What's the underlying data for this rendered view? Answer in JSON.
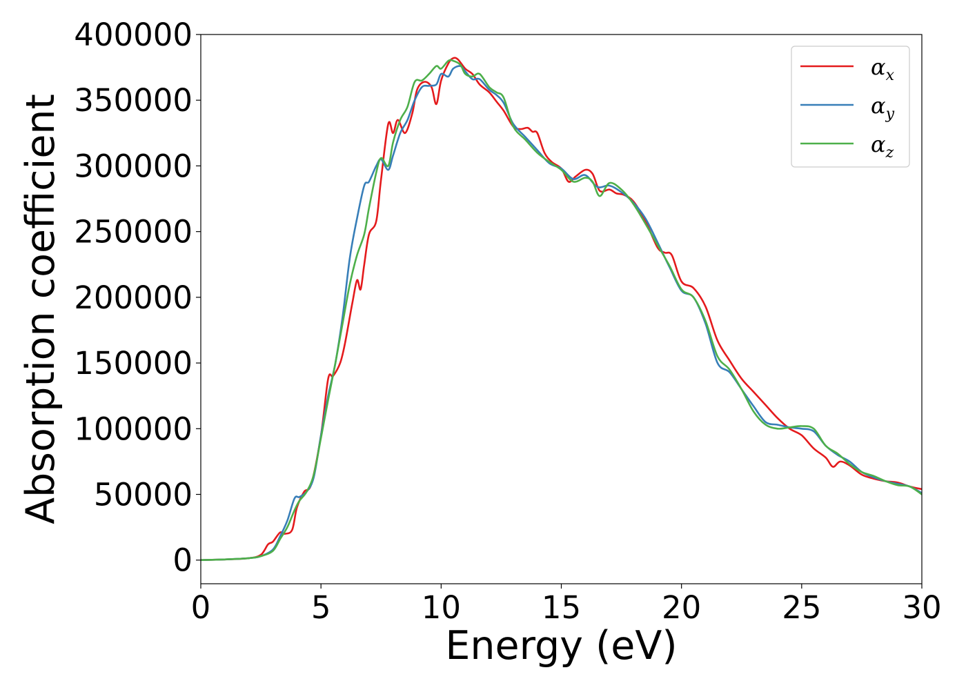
{
  "chart_data": {
    "type": "line",
    "title": "",
    "xlabel": "Energy (eV)",
    "ylabel": "Absorption coefficient",
    "xlim": [
      0,
      30
    ],
    "ylim": [
      -18000,
      400000
    ],
    "xticks": [
      0,
      5,
      10,
      15,
      20,
      25,
      30
    ],
    "xtick_labels": [
      "0",
      "5",
      "10",
      "15",
      "20",
      "25",
      "30"
    ],
    "yticks": [
      0,
      50000,
      100000,
      150000,
      200000,
      250000,
      300000,
      350000,
      400000
    ],
    "ytick_labels": [
      "0",
      "50000",
      "100000",
      "150000",
      "200000",
      "250000",
      "300000",
      "350000",
      "400000"
    ],
    "grid": false,
    "legend_position": "top-right",
    "series": [
      {
        "name": "αx",
        "symbol": "α",
        "subscript": "x",
        "color": "#e41a1c",
        "x": [
          0,
          1,
          2,
          2.5,
          2.8,
          3.0,
          3.3,
          3.5,
          3.8,
          4.0,
          4.3,
          4.6,
          5.0,
          5.3,
          5.5,
          5.8,
          6.0,
          6.3,
          6.5,
          6.65,
          6.8,
          7.0,
          7.3,
          7.5,
          7.8,
          8.0,
          8.2,
          8.5,
          8.8,
          9.0,
          9.3,
          9.6,
          9.8,
          10.0,
          10.3,
          10.5,
          10.7,
          11.0,
          11.3,
          11.6,
          12.0,
          12.3,
          12.6,
          13.0,
          13.3,
          13.6,
          13.8,
          14.0,
          14.3,
          14.6,
          15.0,
          15.3,
          15.6,
          16.0,
          16.3,
          16.6,
          17.0,
          17.3,
          17.6,
          18.0,
          18.5,
          19.0,
          19.3,
          19.6,
          20.0,
          20.5,
          21.0,
          21.5,
          22.0,
          22.5,
          23.0,
          23.5,
          24.0,
          24.5,
          25.0,
          25.5,
          26.0,
          26.3,
          26.6,
          27.0,
          27.5,
          28.0,
          28.5,
          29.0,
          29.5,
          30.0
        ],
        "y": [
          0,
          500,
          1500,
          4000,
          12000,
          14000,
          21000,
          20000,
          23000,
          40000,
          52000,
          58000,
          95000,
          138000,
          140000,
          150000,
          165000,
          195000,
          213000,
          206000,
          225000,
          248000,
          258000,
          290000,
          332000,
          325000,
          335000,
          325000,
          340000,
          358000,
          364000,
          360000,
          347000,
          365000,
          378000,
          382000,
          381000,
          374000,
          370000,
          362000,
          356000,
          349000,
          342000,
          330000,
          328000,
          329000,
          326000,
          325000,
          310000,
          303000,
          298000,
          288000,
          292000,
          297000,
          294000,
          281000,
          282000,
          279000,
          278000,
          273000,
          258000,
          238000,
          234000,
          232000,
          212000,
          207000,
          193000,
          167000,
          152000,
          138000,
          128000,
          118000,
          108000,
          100000,
          95000,
          85000,
          78000,
          71000,
          75000,
          72000,
          65000,
          62000,
          60000,
          59000,
          56000,
          54000
        ]
      },
      {
        "name": "αy",
        "symbol": "α",
        "subscript": "y",
        "color": "#377eb8",
        "x": [
          0,
          1,
          2,
          2.5,
          3.0,
          3.3,
          3.6,
          3.9,
          4.1,
          4.4,
          4.7,
          5.0,
          5.3,
          5.6,
          5.9,
          6.2,
          6.5,
          6.8,
          7.0,
          7.3,
          7.5,
          7.8,
          8.0,
          8.3,
          8.6,
          8.9,
          9.2,
          9.5,
          9.8,
          10.0,
          10.3,
          10.5,
          10.8,
          11.0,
          11.3,
          11.6,
          12.0,
          12.3,
          12.6,
          13.0,
          13.5,
          14.0,
          14.5,
          15.0,
          15.5,
          16.0,
          16.5,
          17.0,
          17.5,
          18.0,
          18.5,
          19.0,
          19.5,
          20.0,
          20.5,
          21.0,
          21.5,
          22.0,
          22.5,
          23.0,
          23.5,
          24.0,
          24.5,
          25.0,
          25.5,
          26.0,
          26.5,
          27.0,
          27.5,
          28.0,
          28.5,
          29.0,
          29.5,
          30.0
        ],
        "y": [
          0,
          500,
          1500,
          3000,
          8000,
          18000,
          30000,
          47000,
          48000,
          52000,
          63000,
          95000,
          125000,
          150000,
          185000,
          230000,
          260000,
          285000,
          288000,
          300000,
          305000,
          297000,
          308000,
          325000,
          335000,
          350000,
          360000,
          361000,
          362000,
          370000,
          368000,
          374000,
          376000,
          372000,
          366000,
          366000,
          358000,
          354000,
          348000,
          332000,
          322000,
          312000,
          302000,
          298000,
          290000,
          293000,
          284000,
          285000,
          280000,
          272000,
          260000,
          242000,
          223000,
          205000,
          200000,
          180000,
          150000,
          143000,
          130000,
          117000,
          105000,
          103000,
          101000,
          100000,
          98000,
          87000,
          80000,
          75000,
          67000,
          63000,
          60000,
          58000,
          56000,
          51000
        ]
      },
      {
        "name": "αz",
        "symbol": "α",
        "subscript": "z",
        "color": "#4daf4a",
        "x": [
          0,
          1,
          2,
          2.5,
          3.0,
          3.3,
          3.6,
          3.9,
          4.1,
          4.4,
          4.7,
          5.0,
          5.3,
          5.6,
          5.9,
          6.2,
          6.5,
          6.8,
          7.0,
          7.3,
          7.5,
          7.8,
          8.0,
          8.3,
          8.6,
          8.9,
          9.2,
          9.5,
          9.8,
          10.0,
          10.3,
          10.5,
          10.8,
          11.0,
          11.3,
          11.6,
          12.0,
          12.3,
          12.6,
          13.0,
          13.5,
          14.0,
          14.5,
          15.0,
          15.5,
          16.0,
          16.3,
          16.6,
          17.0,
          17.5,
          18.0,
          18.5,
          19.0,
          19.5,
          20.0,
          20.5,
          21.0,
          21.5,
          22.0,
          22.5,
          23.0,
          23.5,
          24.0,
          24.5,
          25.0,
          25.5,
          26.0,
          26.5,
          27.0,
          27.5,
          28.0,
          28.5,
          29.0,
          29.5,
          30.0
        ],
        "y": [
          0,
          500,
          1500,
          3000,
          7000,
          16000,
          25000,
          38000,
          45000,
          52000,
          65000,
          93000,
          122000,
          150000,
          180000,
          210000,
          232000,
          248000,
          268000,
          295000,
          306000,
          300000,
          318000,
          335000,
          345000,
          364000,
          365000,
          370000,
          376000,
          374000,
          380000,
          380000,
          377000,
          370000,
          368000,
          370000,
          360000,
          356000,
          352000,
          330000,
          320000,
          310000,
          303000,
          297000,
          288000,
          291000,
          288000,
          277000,
          287000,
          282000,
          271000,
          256000,
          240000,
          224000,
          206000,
          200000,
          182000,
          155000,
          145000,
          130000,
          113000,
          103000,
          100000,
          101000,
          102000,
          100000,
          87000,
          81000,
          73000,
          67000,
          64000,
          60000,
          57000,
          56000,
          50000
        ]
      }
    ]
  }
}
